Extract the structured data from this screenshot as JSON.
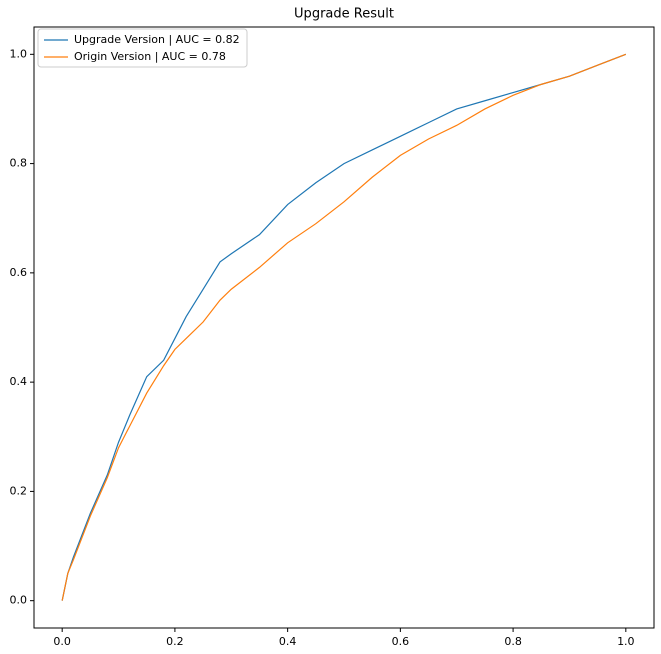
{
  "chart_data": {
    "type": "line",
    "title": "Upgrade Result",
    "x": [
      0,
      0.01,
      0.02,
      0.05,
      0.08,
      0.1,
      0.12,
      0.15,
      0.18,
      0.2,
      0.22,
      0.25,
      0.28,
      0.3,
      0.35,
      0.4,
      0.45,
      0.5,
      0.55,
      0.6,
      0.65,
      0.7,
      0.75,
      0.8,
      0.85,
      0.9,
      0.95,
      1.0
    ],
    "series": [
      {
        "name": "Upgrade Version | AUC = 0.82",
        "color": "#1f77b4",
        "values": [
          0,
          0.05,
          0.08,
          0.16,
          0.23,
          0.29,
          0.34,
          0.41,
          0.44,
          0.48,
          0.52,
          0.57,
          0.62,
          0.635,
          0.67,
          0.725,
          0.765,
          0.8,
          0.825,
          0.85,
          0.875,
          0.9,
          0.915,
          0.93,
          0.945,
          0.96,
          0.98,
          1.0
        ]
      },
      {
        "name": "Origin Version | AUC = 0.78",
        "color": "#ff7f0e",
        "values": [
          0,
          0.05,
          0.075,
          0.155,
          0.225,
          0.28,
          0.32,
          0.38,
          0.43,
          0.46,
          0.48,
          0.51,
          0.55,
          0.57,
          0.61,
          0.655,
          0.69,
          0.73,
          0.775,
          0.815,
          0.845,
          0.87,
          0.9,
          0.925,
          0.945,
          0.96,
          0.98,
          1.0
        ]
      }
    ],
    "xlim": [
      -0.05,
      1.05
    ],
    "ylim": [
      -0.05,
      1.05
    ],
    "xticks": [
      {
        "value": 0,
        "label": "0.0"
      },
      {
        "value": 0.2,
        "label": "0.2"
      },
      {
        "value": 0.4,
        "label": "0.4"
      },
      {
        "value": 0.6,
        "label": "0.6"
      },
      {
        "value": 0.8,
        "label": "0.8"
      },
      {
        "value": 1,
        "label": "1.0"
      }
    ],
    "yticks": [
      {
        "value": 0,
        "label": "0.0"
      },
      {
        "value": 0.2,
        "label": "0.2"
      },
      {
        "value": 0.4,
        "label": "0.4"
      },
      {
        "value": 0.6,
        "label": "0.6"
      },
      {
        "value": 0.8,
        "label": "0.8"
      },
      {
        "value": 1,
        "label": "1.0"
      }
    ],
    "legend": "upper left",
    "grid": false
  }
}
